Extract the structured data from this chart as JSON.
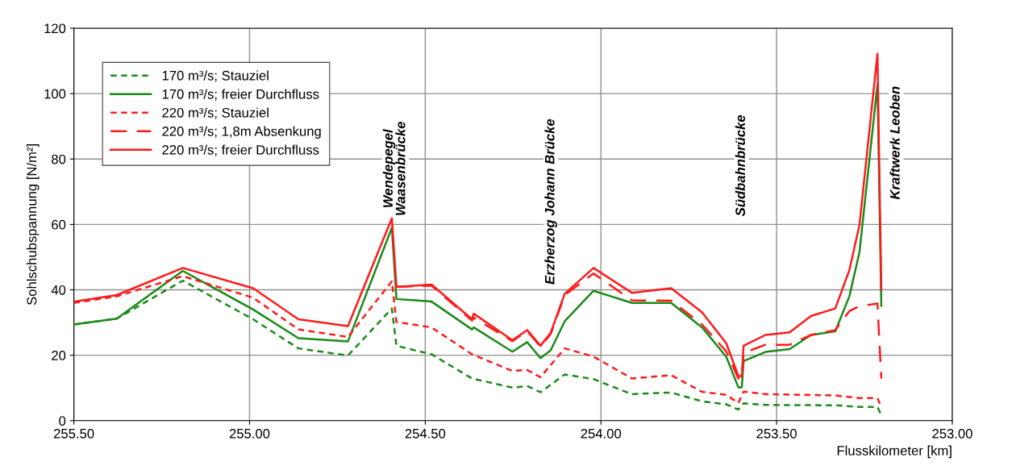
{
  "chart_data": {
    "type": "line",
    "xlabel": "Flusskilometer [km]",
    "ylabel": "Sohlschubspannung [N/m²]",
    "xlim": [
      255.5,
      253.0
    ],
    "xticks": [
      {
        "value": 255.5,
        "label": "255.50"
      },
      {
        "value": 255.0,
        "label": "255.00"
      },
      {
        "value": 254.5,
        "label": "254.50"
      },
      {
        "value": 254.0,
        "label": "254.00"
      },
      {
        "value": 253.5,
        "label": "253.50"
      },
      {
        "value": 253.0,
        "label": "253.00"
      }
    ],
    "ylim": [
      0,
      120
    ],
    "yticks": [
      0,
      20,
      40,
      60,
      80,
      100,
      120
    ],
    "grid": true,
    "legend": "top left",
    "marker": "none",
    "series": [
      {
        "name": "170 m³/s; Stauziel",
        "color": "#1a8a1a",
        "line_style": "dotted",
        "x": [
          255.5,
          255.378,
          255.19,
          254.99,
          254.861,
          254.72,
          254.595,
          254.582,
          254.482,
          254.367,
          254.252,
          254.21,
          254.172,
          254.103,
          254.021,
          253.912,
          253.8,
          253.712,
          253.643,
          253.609,
          253.594,
          253.532,
          253.333,
          253.264,
          253.213,
          253.202
        ],
        "values": [
          29.4,
          31.2,
          42.8,
          31,
          22.1,
          19.9,
          34.3,
          22.9,
          20.3,
          12.9,
          10.1,
          10.6,
          8.7,
          14.1,
          12.7,
          8.1,
          8.6,
          5.9,
          5,
          3.4,
          5.3,
          4.8,
          4.7,
          4.2,
          4.2,
          1.7
        ]
      },
      {
        "name": "170 m³/s; freier Durchfluss",
        "color": "#1a8a1a",
        "line_style": "solid",
        "x": [
          255.5,
          255.378,
          255.19,
          254.99,
          254.861,
          254.72,
          254.595,
          254.582,
          254.482,
          254.367,
          254.362,
          254.252,
          254.21,
          254.172,
          254.143,
          254.103,
          254.021,
          253.912,
          253.8,
          253.712,
          253.643,
          253.609,
          253.599,
          253.594,
          253.532,
          253.463,
          253.402,
          253.333,
          253.293,
          253.264,
          253.213,
          253.202
        ],
        "values": [
          29.4,
          31.2,
          45.8,
          34,
          25.2,
          24.2,
          59,
          37.2,
          36.4,
          27.9,
          28.5,
          21.1,
          24,
          19.1,
          21.5,
          30.4,
          39.7,
          36,
          36,
          28.5,
          19.5,
          10.2,
          10.2,
          18.2,
          21,
          21.9,
          26.2,
          27.3,
          38,
          51.6,
          102.8,
          35.1
        ]
      },
      {
        "name": "220 m³/s; Stauziel",
        "color": "#ff1a1a",
        "line_style": "dotted",
        "x": [
          255.5,
          255.378,
          255.19,
          254.99,
          254.861,
          254.72,
          254.595,
          254.582,
          254.482,
          254.367,
          254.252,
          254.21,
          254.172,
          254.103,
          254.021,
          253.912,
          253.8,
          253.712,
          253.643,
          253.609,
          253.594,
          253.532,
          253.333,
          253.264,
          253.213,
          253.202
        ],
        "values": [
          36,
          38,
          44.2,
          37.6,
          27.9,
          25.6,
          42.6,
          30.2,
          28.5,
          20.3,
          15.2,
          15.5,
          13.3,
          22.1,
          19.6,
          12.9,
          13.9,
          8.8,
          7.9,
          5.4,
          8.9,
          8.1,
          7.7,
          6.9,
          6.9,
          4.2
        ]
      },
      {
        "name": "220 m³/s; 1,8m Absenkung",
        "color": "#ff1a1a",
        "line_style": "dashed",
        "x": [
          254.582,
          254.482,
          254.367,
          254.362,
          254.252,
          254.21,
          254.172,
          254.143,
          254.103,
          254.021,
          253.912,
          253.8,
          253.712,
          253.643,
          253.609,
          253.599,
          253.594,
          253.532,
          253.463,
          253.402,
          253.333,
          253.293,
          253.264,
          253.213,
          253.202
        ],
        "values": [
          40.9,
          41.3,
          30.6,
          31.5,
          24.3,
          27.4,
          22.6,
          26.5,
          38.4,
          45,
          36.8,
          36.7,
          29.4,
          21.1,
          12.9,
          12.7,
          20.7,
          23.2,
          23.2,
          26.2,
          27.7,
          33.5,
          35,
          35.8,
          12.9
        ]
      },
      {
        "name": "220 m³/s; freier Durchfluss",
        "color": "#ff1a1a",
        "line_style": "solid",
        "x": [
          255.5,
          255.378,
          255.19,
          254.99,
          254.861,
          254.72,
          254.595,
          254.582,
          254.482,
          254.367,
          254.362,
          254.252,
          254.21,
          254.172,
          254.143,
          254.103,
          254.021,
          253.912,
          253.8,
          253.712,
          253.643,
          253.609,
          253.599,
          253.594,
          253.532,
          253.463,
          253.402,
          253.333,
          253.293,
          253.264,
          253.213,
          253.202
        ],
        "values": [
          36.4,
          38.4,
          46.7,
          40.5,
          31,
          28.9,
          61.9,
          40.9,
          41.6,
          31,
          32.7,
          24.6,
          27.7,
          22.9,
          26.9,
          38.8,
          46.7,
          39.1,
          40.5,
          33.1,
          23.6,
          13.7,
          13.5,
          22.9,
          26.2,
          27,
          32,
          34.3,
          46,
          59.9,
          112.2,
          40.1
        ]
      }
    ],
    "annotations": [
      "Wendepegel\nWaasenbrücke",
      "Erzherzog Johann Brücke",
      "Südbahnbrücke",
      "Kraftwerk Leoben"
    ]
  }
}
